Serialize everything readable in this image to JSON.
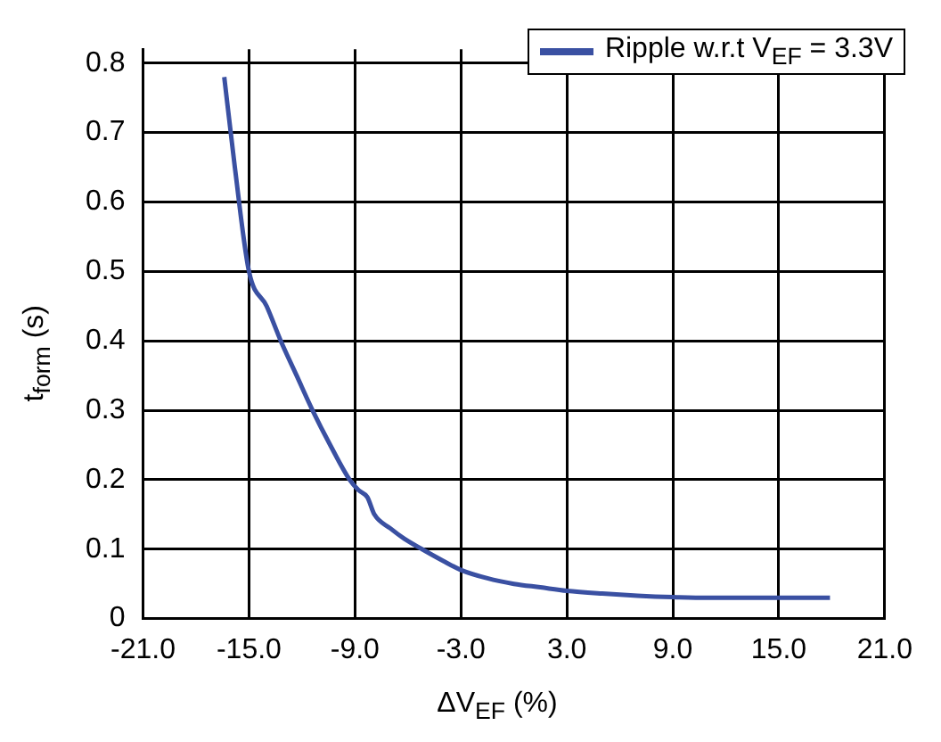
{
  "chart_data": {
    "type": "line",
    "xlabel": "ΔV$_{EF}$ (%)",
    "ylabel": "t$_{form}$ (s)",
    "xlim": [
      -21,
      21
    ],
    "ylim": [
      0,
      0.82
    ],
    "xticks": [
      {
        "value": -21,
        "label": "-21.0"
      },
      {
        "value": -15,
        "label": "-15.0"
      },
      {
        "value": -9,
        "label": "-9.0"
      },
      {
        "value": -3,
        "label": "-3.0"
      },
      {
        "value": 3,
        "label": "3.0"
      },
      {
        "value": 9,
        "label": "9.0"
      },
      {
        "value": 15,
        "label": "15.0"
      },
      {
        "value": 21,
        "label": "21.0"
      }
    ],
    "yticks": [
      0,
      0.1,
      0.2,
      0.3,
      0.4,
      0.5,
      0.6,
      0.7,
      0.8
    ],
    "grid": true,
    "legend": "top right",
    "line_style": "solid",
    "series": [
      {
        "name": "Ripple w.r.t V$_{EF}$ = 3.3V",
        "color": "#3a50a2",
        "x": [
          -16.4,
          -15.8,
          -15,
          -14,
          -13.2,
          -12.3,
          -11.4,
          -10.4,
          -9.3,
          -8.8,
          -8.3,
          -7.9,
          -7,
          -6.2,
          -5.2,
          -4,
          -3,
          -1.5,
          0,
          1.5,
          3,
          5,
          7,
          9,
          11,
          13,
          15,
          17.9
        ],
        "values": [
          0.78,
          0.65,
          0.5,
          0.45,
          0.4,
          0.35,
          0.3,
          0.25,
          0.2,
          0.185,
          0.175,
          0.15,
          0.13,
          0.115,
          0.1,
          0.083,
          0.07,
          0.058,
          0.05,
          0.045,
          0.04,
          0.036,
          0.033,
          0.031,
          0.03,
          0.03,
          0.03,
          0.03
        ]
      }
    ]
  }
}
